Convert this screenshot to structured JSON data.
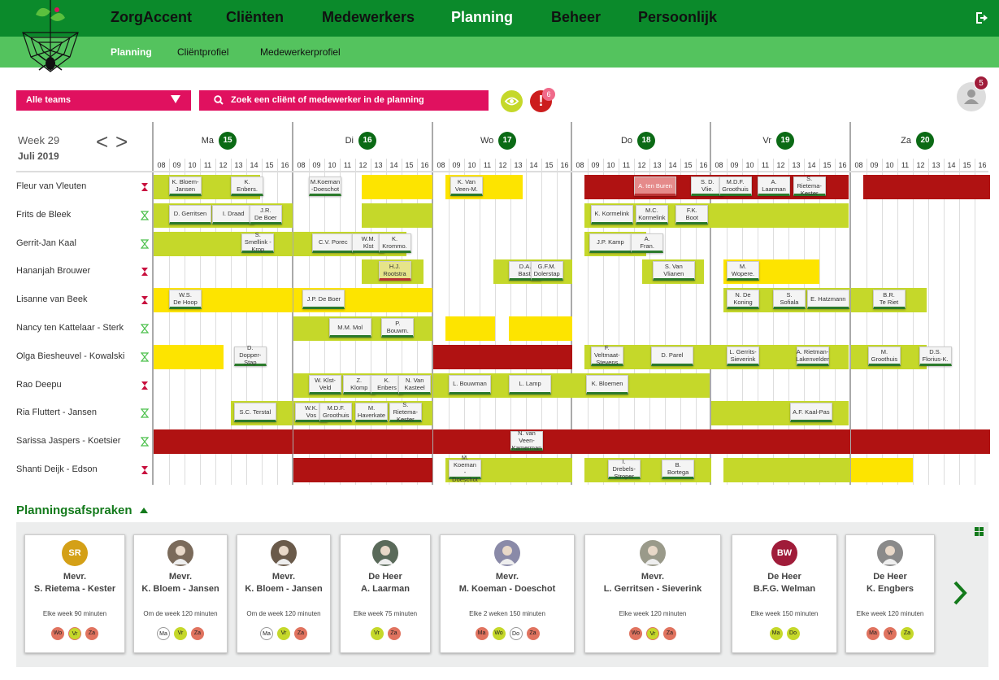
{
  "nav": {
    "brand": "ZorgAccent",
    "items": [
      "Cliënten",
      "Medewerkers",
      "Planning",
      "Beheer",
      "Persoonlijk"
    ],
    "active": "Planning"
  },
  "subnav": {
    "items": [
      "Planning",
      "Cliëntprofiel",
      "Medewerkerprofiel"
    ],
    "active": "Planning"
  },
  "toolbar": {
    "teams_label": "Alle teams",
    "search_placeholder": "Zoek een cliënt of medewerker in de planning",
    "alert_count": "6",
    "user_count": "5"
  },
  "calendar": {
    "week": "Week 29",
    "month": "Juli 2019",
    "hours": [
      "08",
      "09",
      "10",
      "11",
      "12",
      "13",
      "14",
      "15",
      "16"
    ],
    "days": [
      {
        "name": "Ma",
        "num": "15"
      },
      {
        "name": "Di",
        "num": "16"
      },
      {
        "name": "Wo",
        "num": "17"
      },
      {
        "name": "Do",
        "num": "18"
      },
      {
        "name": "Vr",
        "num": "19"
      },
      {
        "name": "Za",
        "num": "20"
      }
    ],
    "employees": [
      {
        "name": "Fleur van Vleuten",
        "hour": "red"
      },
      {
        "name": "Frits de Bleek",
        "hour": "green"
      },
      {
        "name": "Gerrit-Jan Kaal",
        "hour": "green"
      },
      {
        "name": "Hananjah Brouwer",
        "hour": "red"
      },
      {
        "name": "Lisanne van Beek",
        "hour": "red"
      },
      {
        "name": "Nancy ten Kattelaar - Sterk",
        "hour": "green"
      },
      {
        "name": "Olga Biesheuvel - Kowalski",
        "hour": "green"
      },
      {
        "name": "Rao Deepu",
        "hour": "red"
      },
      {
        "name": "Ria Fluttert - Jansen",
        "hour": "green"
      },
      {
        "name": "Sarissa Jaspers - Koetsier",
        "hour": "green"
      },
      {
        "name": "Shanti Deijk - Edson",
        "hour": "red"
      }
    ],
    "blocks": [
      [
        0,
        "g",
        0,
        0,
        6.9
      ],
      [
        0,
        "y",
        1,
        4.4,
        4.6
      ],
      [
        0,
        "y",
        2,
        0.8,
        5
      ],
      [
        0,
        "r",
        3,
        0.8,
        8.5
      ],
      [
        0,
        "r",
        4,
        0,
        8.9
      ],
      [
        0,
        "r",
        5,
        0.8,
        8.2
      ],
      [
        1,
        "g",
        0,
        0,
        9
      ],
      [
        1,
        "g",
        1,
        4.4,
        4.6
      ],
      [
        1,
        "g",
        3,
        0.8,
        8.2
      ],
      [
        1,
        "g",
        4,
        0,
        8.9
      ],
      [
        2,
        "g",
        0,
        0,
        9
      ],
      [
        2,
        "g",
        1,
        0,
        7.3
      ],
      [
        2,
        "g",
        3,
        0.8,
        4
      ],
      [
        3,
        "g",
        1,
        4.4,
        4
      ],
      [
        3,
        "g",
        2,
        3.9,
        5.1
      ],
      [
        3,
        "g",
        3,
        4.5,
        4
      ],
      [
        3,
        "y",
        4,
        0.8,
        6.2
      ],
      [
        4,
        "y",
        0,
        0,
        9
      ],
      [
        4,
        "y",
        1,
        0,
        9
      ],
      [
        4,
        "g",
        4,
        0.8,
        8.2
      ],
      [
        4,
        "g",
        5,
        0,
        4.9
      ],
      [
        5,
        "g",
        1,
        0,
        9
      ],
      [
        5,
        "y",
        2,
        0.8,
        3.2
      ],
      [
        5,
        "y",
        2,
        4.9,
        4.1
      ],
      [
        6,
        "y",
        0,
        0,
        4.5
      ],
      [
        6,
        "r",
        2,
        0,
        9
      ],
      [
        6,
        "g",
        3,
        0.8,
        8.2
      ],
      [
        6,
        "g",
        4,
        0,
        8.9
      ],
      [
        6,
        "g",
        5,
        0,
        4.9
      ],
      [
        7,
        "g",
        1,
        0,
        9
      ],
      [
        7,
        "g",
        2,
        0,
        9
      ],
      [
        7,
        "g",
        3,
        0,
        8.9
      ],
      [
        8,
        "g",
        0,
        5,
        4
      ],
      [
        8,
        "g",
        1,
        0,
        9
      ],
      [
        8,
        "g",
        4,
        0,
        8.9
      ],
      [
        9,
        "r",
        0,
        0,
        9
      ],
      [
        9,
        "r",
        1,
        0,
        9
      ],
      [
        9,
        "r",
        2,
        0,
        9
      ],
      [
        9,
        "r",
        3,
        0,
        9
      ],
      [
        9,
        "r",
        4,
        0,
        9
      ],
      [
        9,
        "r",
        5,
        0,
        9
      ],
      [
        10,
        "r",
        1,
        0,
        9
      ],
      [
        10,
        "g",
        2,
        0.8,
        8.2
      ],
      [
        10,
        "g",
        3,
        0.8,
        8.2
      ],
      [
        10,
        "g",
        4,
        0.8,
        8.2
      ],
      [
        10,
        "y",
        5,
        0,
        4
      ]
    ],
    "cards": [
      [
        0,
        0,
        1,
        "K. Bloem-\nJansen",
        ""
      ],
      [
        0,
        0,
        5,
        "K.\nEnbers.",
        ""
      ],
      [
        0,
        1,
        1,
        "M.Koeman\n-Doeschot",
        ""
      ],
      [
        0,
        2,
        1.1,
        "K. Van\nVeen-M.",
        ""
      ],
      [
        0,
        3,
        4,
        "A. ten Buren",
        "pink"
      ],
      [
        0,
        3,
        7.7,
        "S. D.\nVlie.",
        ""
      ],
      [
        0,
        4,
        0.5,
        "M.D.F.\nGroothuis",
        ""
      ],
      [
        0,
        4,
        3,
        "A.\nLaarman",
        ""
      ],
      [
        0,
        4,
        5.3,
        "S. Rietema-\nKester",
        ""
      ],
      [
        1,
        0,
        1,
        "D. Gerritsen",
        ""
      ],
      [
        1,
        0,
        3.8,
        "I. Draad",
        ""
      ],
      [
        1,
        0,
        6.2,
        "J.R.\nDe Boer",
        ""
      ],
      [
        1,
        3,
        1.2,
        "K. Kormelink",
        ""
      ],
      [
        1,
        3,
        4.1,
        "M.C.\nKormelink",
        ""
      ],
      [
        1,
        3,
        6.7,
        "F.K.\nBoot",
        ""
      ],
      [
        2,
        0,
        5.7,
        "S. Smellink -\nKrop",
        ""
      ],
      [
        2,
        1,
        1.2,
        "C.V. Porec",
        ""
      ],
      [
        2,
        1,
        3.8,
        "W.M.\nKlst",
        ""
      ],
      [
        2,
        1,
        5.5,
        "K.\nKrommo.",
        ""
      ],
      [
        2,
        3,
        1.1,
        "J.P. Kamp",
        ""
      ],
      [
        2,
        3,
        3.8,
        "A.\nFran.",
        ""
      ],
      [
        3,
        1,
        5.5,
        "H.J.\nRootstra",
        "yellowish"
      ],
      [
        3,
        2,
        4.9,
        "D.A.\nBast.",
        ""
      ],
      [
        3,
        2,
        6.3,
        "G.F.M.\nDolerstap",
        ""
      ],
      [
        3,
        3,
        5.2,
        "S. Van Vlianen",
        ""
      ],
      [
        3,
        4,
        1,
        "M.\nWopere.",
        ""
      ],
      [
        4,
        0,
        1,
        "W.S.\nDe Hoop",
        ""
      ],
      [
        4,
        1,
        0.6,
        "J.P. De Boer",
        ""
      ],
      [
        4,
        4,
        1,
        "N. De\nKoning",
        ""
      ],
      [
        4,
        4,
        4,
        "S.\nSofiala",
        ""
      ],
      [
        4,
        4,
        6.2,
        "E. Hatzmann",
        ""
      ],
      [
        4,
        5,
        1.4,
        "B.R.\nTe Riet",
        ""
      ],
      [
        5,
        1,
        2.3,
        "M.M. Mol",
        ""
      ],
      [
        5,
        1,
        5.7,
        "P.\nBouwm.",
        ""
      ],
      [
        6,
        0,
        5.2,
        "D. Dopper-\nStap",
        ""
      ],
      [
        6,
        3,
        1.2,
        "F. Veltmaat-\nStevens",
        ""
      ],
      [
        6,
        3,
        5.1,
        "D. Parel",
        ""
      ],
      [
        6,
        4,
        1,
        "L. Gerrits-\nSieverink",
        ""
      ],
      [
        6,
        4,
        5.5,
        "A. Rietman-\nLakenvelder",
        ""
      ],
      [
        6,
        5,
        1.1,
        "M.\nGroothuis",
        ""
      ],
      [
        6,
        5,
        4.4,
        "D.S.\nFlorius-K.",
        ""
      ],
      [
        7,
        1,
        1,
        "W. Klst-\nVeld",
        ""
      ],
      [
        7,
        1,
        3.2,
        "Z.\nKlomp",
        ""
      ],
      [
        7,
        1,
        5,
        "K.\nEnbers",
        ""
      ],
      [
        7,
        1,
        6.8,
        "N. Van\nKasteel",
        ""
      ],
      [
        7,
        2,
        1,
        "L. Bouwman",
        ""
      ],
      [
        7,
        2,
        4.9,
        "L. Lamp",
        ""
      ],
      [
        7,
        3,
        0.9,
        "K. Bloemen",
        ""
      ],
      [
        8,
        0,
        5.2,
        "S.C. Terstal",
        ""
      ],
      [
        8,
        1,
        0.1,
        "W.K.\nVos",
        ""
      ],
      [
        8,
        1,
        1.7,
        "M.D.F.\nGroothuis",
        ""
      ],
      [
        8,
        1,
        4,
        "M.\nHaverkate",
        ""
      ],
      [
        8,
        1,
        6.2,
        "S. Rietema-\nKester",
        ""
      ],
      [
        8,
        4,
        5.1,
        "A.F. Kaal-Pas",
        ""
      ],
      [
        9,
        2,
        5,
        "N. van Veen-\nKamerman",
        ""
      ],
      [
        10,
        2,
        1,
        "M. Koeman\n-Doeschot",
        ""
      ],
      [
        10,
        3,
        2.3,
        "I. Drebels-\nStroper",
        ""
      ],
      [
        10,
        3,
        5.8,
        "B.\nBortega",
        ""
      ]
    ]
  },
  "planning": {
    "heading": "Planningsafspraken",
    "cards": [
      {
        "initials": "SR",
        "avatar_color": "#d4a017",
        "title": "Mevr.",
        "name": "S. Rietema - Kester",
        "freq": "Elke week 90 minuten",
        "days": [
          [
            "Wo",
            "r"
          ],
          [
            "Vr",
            "rg"
          ],
          [
            "Za",
            "r"
          ]
        ]
      },
      {
        "initials": "",
        "avatar_color": "#7a6a5a",
        "title": "Mevr.",
        "name": "K. Bloem - Jansen",
        "freq": "Om de week 120 minuten",
        "days": [
          [
            "Ma",
            "w"
          ],
          [
            "Vr",
            "g"
          ],
          [
            "Za",
            "r"
          ]
        ]
      },
      {
        "initials": "",
        "avatar_color": "#6a5a4a",
        "title": "Mevr.",
        "name": "K. Bloem - Jansen",
        "freq": "Om de week 120 minuten",
        "days": [
          [
            "Ma",
            "w"
          ],
          [
            "Vr",
            "g"
          ],
          [
            "Za",
            "r"
          ]
        ]
      },
      {
        "initials": "",
        "avatar_color": "#5a6a5a",
        "title": "De Heer",
        "name": "A. Laarman",
        "freq": "Elke week 75 minuten",
        "days": [
          [
            "Vr",
            "g"
          ],
          [
            "Za",
            "r"
          ]
        ]
      },
      {
        "initials": "",
        "avatar_color": "#8a8aa8",
        "title": "Mevr.",
        "name": "M. Koeman - Doeschot",
        "freq": "Elke 2 weken 150 minuten",
        "days": [
          [
            "Ma",
            "r"
          ],
          [
            "Wo",
            "g"
          ],
          [
            "Do",
            "w"
          ],
          [
            "Za",
            "r"
          ]
        ]
      },
      {
        "initials": "",
        "avatar_color": "#9a9a8a",
        "title": "Mevr.",
        "name": "L. Gerritsen - Sieverink",
        "freq": "Elke week 120 minuten",
        "days": [
          [
            "Wo",
            "r"
          ],
          [
            "Vr",
            "rg"
          ],
          [
            "Za",
            "r"
          ]
        ]
      },
      {
        "initials": "BW",
        "avatar_color": "#a01c3a",
        "title": "De Heer",
        "name": "B.F.G. Welman",
        "freq": "Elke week 150 minuten",
        "days": [
          [
            "Ma",
            "g"
          ],
          [
            "Do",
            "g"
          ]
        ]
      },
      {
        "initials": "",
        "avatar_color": "#8a8a8a",
        "title": "De Heer",
        "name": "K. Engbers",
        "freq": "Elke week 120 minuten",
        "days": [
          [
            "Ma",
            "r"
          ],
          [
            "Vr",
            "r"
          ],
          [
            "Za",
            "g"
          ]
        ]
      }
    ]
  }
}
